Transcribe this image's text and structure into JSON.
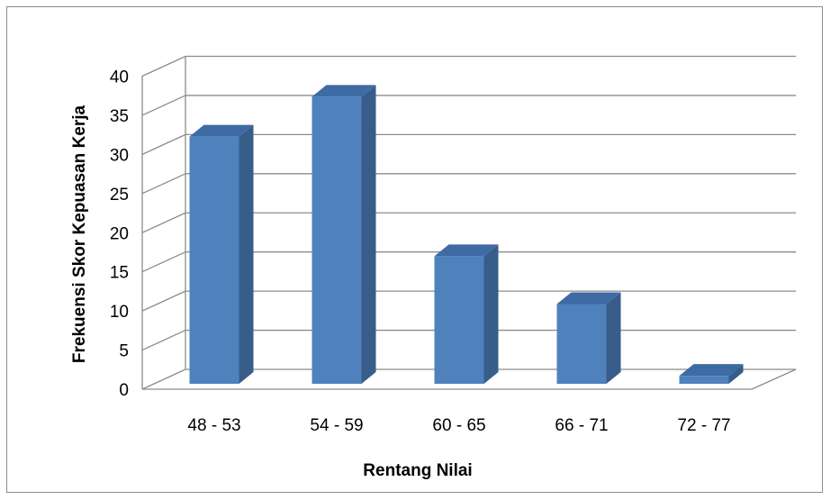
{
  "chart_data": {
    "type": "bar",
    "style": "3d-column",
    "title": "",
    "xlabel": "Rentang Nilai",
    "ylabel": "Frekuensi Skor Kepuasan Kerja",
    "categories": [
      "48 - 53",
      "54 - 59",
      "60 - 65",
      "66 - 71",
      "72 - 77"
    ],
    "values": [
      31,
      36,
      16,
      10,
      1
    ],
    "ylim": [
      0,
      40
    ],
    "yticks": [
      "0",
      "5",
      "10",
      "15",
      "20",
      "25",
      "30",
      "35",
      "40"
    ],
    "grid": true,
    "legend": "none",
    "colors": {
      "bar_front": "#4f81bd",
      "bar_side": "#385d8a",
      "bar_top": "#3e6ba3",
      "grid": "#8c8c8c",
      "frame": "#8c8c8c"
    }
  }
}
